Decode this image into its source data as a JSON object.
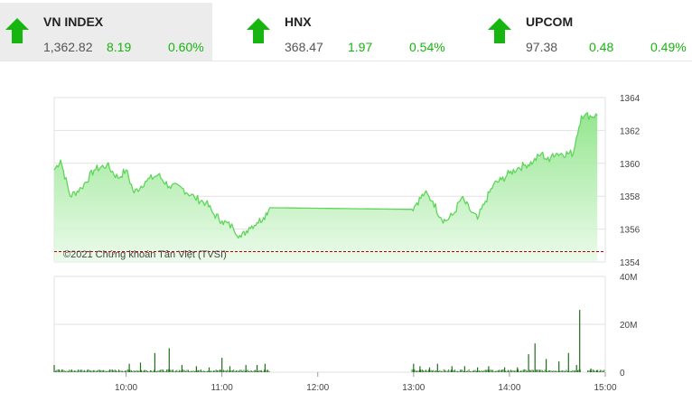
{
  "indices": [
    {
      "name": "VN INDEX",
      "value": "1,362.82",
      "change": "8.19",
      "percent": "0.60%",
      "direction": "up",
      "selected": true
    },
    {
      "name": "HNX",
      "value": "368.47",
      "change": "1.97",
      "percent": "0.54%",
      "direction": "up",
      "selected": false
    },
    {
      "name": "UPCOM",
      "value": "97.38",
      "change": "0.48",
      "percent": "0.49%",
      "direction": "up",
      "selected": false
    }
  ],
  "colors": {
    "up": "#16b50f",
    "line": "#5fd65a",
    "fill_top": "#8fe58a",
    "fill_bottom": "#e9fae8",
    "reference": "#c00000",
    "volume": "#1e6e1a",
    "grid": "#e2e2e2"
  },
  "chart_data": [
    {
      "type": "area",
      "x_unit": "time",
      "x_ticks": [
        "10:00",
        "11:00",
        "12:00",
        "13:00",
        "14:00",
        "15:00"
      ],
      "y_ticks": [
        "1364",
        "1362",
        "1360",
        "1358",
        "1356",
        "1354"
      ],
      "ylim": [
        1354,
        1364
      ],
      "reference_value": 1354.63,
      "grid": true,
      "annotation": "©2021 Chứng khoán Tân Việt (TVSI)",
      "series": [
        {
          "x": [
            "09:15",
            "09:19",
            "09:25",
            "09:32",
            "09:40",
            "09:48",
            "09:55",
            "10:00",
            "10:05",
            "10:12",
            "10:20",
            "10:27",
            "10:35",
            "10:43",
            "10:50",
            "10:55",
            "11:00",
            "11:07",
            "11:12",
            "11:17",
            "11:22",
            "11:26",
            "11:30",
            "12:59",
            "13:02",
            "13:07",
            "13:12",
            "13:17",
            "13:20",
            "13:25",
            "13:30",
            "13:35",
            "13:40",
            "13:45",
            "13:50",
            "13:55",
            "14:00",
            "14:05",
            "14:10",
            "14:15",
            "14:20",
            "14:25",
            "14:27",
            "14:30",
            "14:40",
            "14:42",
            "14:45",
            "14:47",
            "14:55"
          ],
          "values": [
            1359.6,
            1360.2,
            1358.0,
            1358.5,
            1359.6,
            1359.9,
            1359.1,
            1359.6,
            1358.2,
            1358.9,
            1359.3,
            1358.6,
            1358.5,
            1357.9,
            1357.6,
            1356.9,
            1356.5,
            1356.1,
            1355.5,
            1356.1,
            1356.4,
            1356.7,
            1357.3,
            1357.2,
            1357.6,
            1358.2,
            1357.7,
            1356.7,
            1356.5,
            1356.9,
            1357.9,
            1357.2,
            1356.6,
            1357.7,
            1358.7,
            1359.0,
            1359.4,
            1359.7,
            1359.9,
            1360.1,
            1360.6,
            1360.1,
            1360.6,
            1360.6,
            1360.6,
            1361.6,
            1362.9,
            1362.9,
            1362.9
          ]
        }
      ]
    },
    {
      "type": "bar",
      "x_ticks": [
        "10:00",
        "11:00",
        "12:00",
        "13:00",
        "14:00",
        "15:00"
      ],
      "y_ticks": [
        "40M",
        "20M",
        "0"
      ],
      "ylim": [
        0,
        40
      ],
      "grid": true,
      "series": [
        {
          "x": [
            "09:15",
            "10:02",
            "10:09",
            "10:18",
            "10:27",
            "10:35",
            "10:44",
            "10:52",
            "11:00",
            "11:05",
            "11:15",
            "11:22",
            "11:27",
            "13:00",
            "13:04",
            "13:10",
            "13:15",
            "13:24",
            "13:32",
            "13:40",
            "13:47",
            "13:57",
            "14:05",
            "14:12",
            "14:16",
            "14:23",
            "14:31",
            "14:37",
            "14:42",
            "14:44",
            "14:51",
            "14:55"
          ],
          "values": [
            3.0,
            3.5,
            4.0,
            8.0,
            10.0,
            3.0,
            2.5,
            2.0,
            6.0,
            2.5,
            3.0,
            3.0,
            3.5,
            3.5,
            2.5,
            2.0,
            3.5,
            2.5,
            2.5,
            2.0,
            2.5,
            2.0,
            2.0,
            7.5,
            12.0,
            5.5,
            4.5,
            8.0,
            3.0,
            26.0,
            1.5,
            1.0
          ]
        }
      ]
    }
  ]
}
